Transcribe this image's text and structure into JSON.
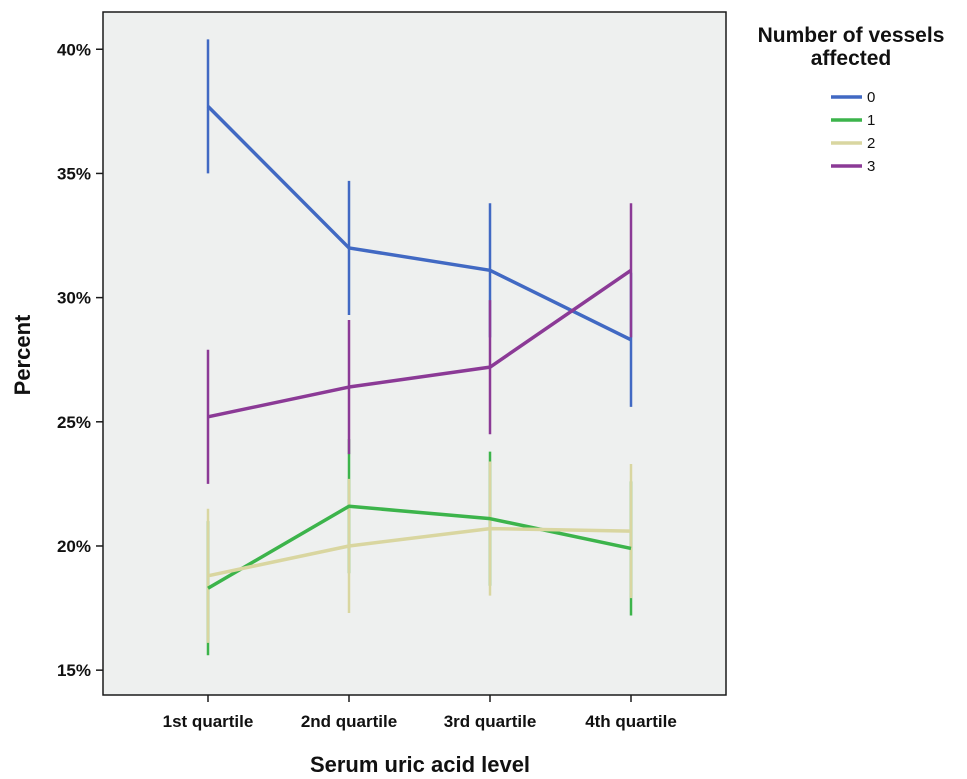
{
  "chart_data": {
    "type": "line",
    "title": "",
    "xlabel": "Serum uric acid level",
    "ylabel": "Percent",
    "categories": [
      "1st quartile",
      "2nd quartile",
      "3rd quartile",
      "4th quartile"
    ],
    "ylim": [
      14,
      41.5
    ],
    "yticks": [
      15,
      20,
      25,
      30,
      35,
      40
    ],
    "ytick_labels": [
      "15%",
      "20%",
      "25%",
      "30%",
      "35%",
      "40%"
    ],
    "grid": false,
    "legend": {
      "title_lines": [
        "Number of vessels",
        "affected"
      ],
      "placement": "right"
    },
    "error_bars": true,
    "series": [
      {
        "name": "0",
        "color": "#4169c3",
        "values": [
          37.7,
          32.0,
          31.1,
          28.3
        ],
        "lower": [
          35.0,
          29.3,
          28.4,
          25.6
        ],
        "upper": [
          40.4,
          34.7,
          33.8,
          31.0
        ]
      },
      {
        "name": "1",
        "color": "#3cb44b",
        "values": [
          18.3,
          21.6,
          21.1,
          19.9
        ],
        "lower": [
          15.6,
          18.9,
          18.4,
          17.2
        ],
        "upper": [
          21.0,
          24.3,
          23.8,
          22.6
        ]
      },
      {
        "name": "2",
        "color": "#d9d6a0",
        "values": [
          18.8,
          20.0,
          20.7,
          20.6
        ],
        "lower": [
          16.1,
          17.3,
          18.0,
          17.9
        ],
        "upper": [
          21.5,
          22.7,
          23.4,
          23.3
        ]
      },
      {
        "name": "3",
        "color": "#8b3a96",
        "values": [
          25.2,
          26.4,
          27.2,
          31.1
        ],
        "lower": [
          22.5,
          23.7,
          24.5,
          28.4
        ],
        "upper": [
          27.9,
          29.1,
          29.9,
          33.8
        ]
      }
    ],
    "plot_background": "#eef0ef"
  }
}
